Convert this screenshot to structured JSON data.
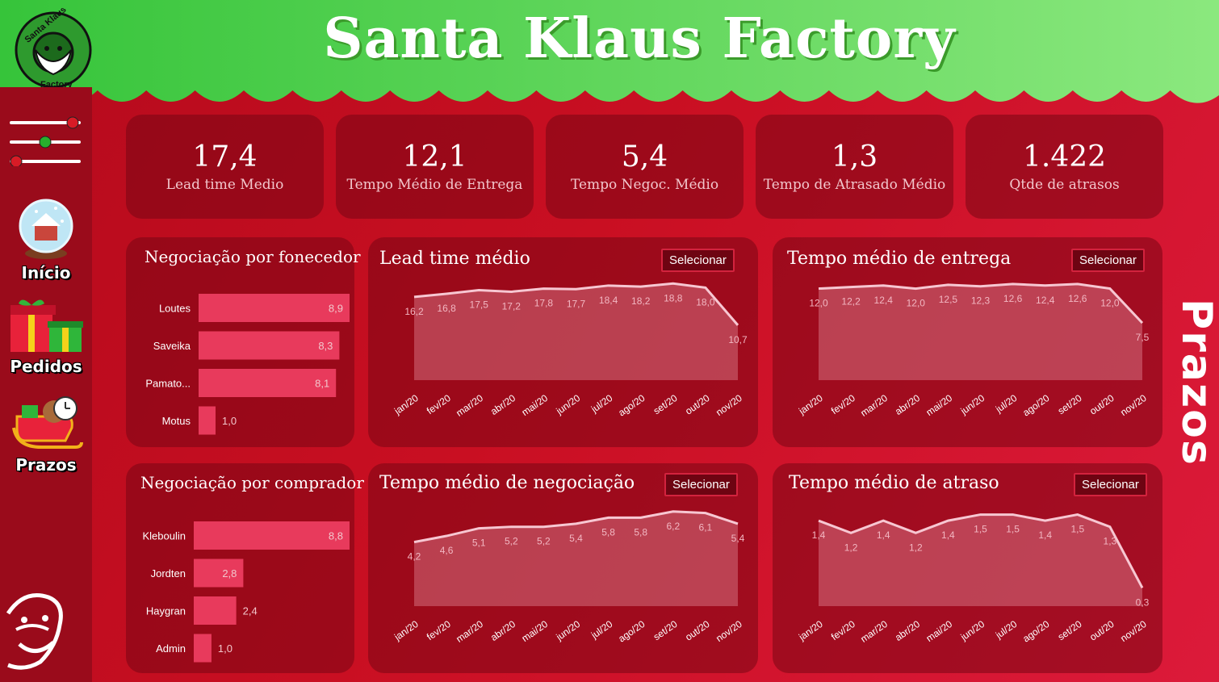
{
  "header": {
    "title": "Santa Klaus Factory",
    "logo_text_top": "Santa Klaus",
    "logo_text_bottom": "Factory"
  },
  "nav": [
    {
      "label": "Início",
      "icon": "snow-globe-icon"
    },
    {
      "label": "Pedidos",
      "icon": "gift-icon"
    },
    {
      "label": "Prazos",
      "icon": "sleigh-icon"
    }
  ],
  "filter_icon": "sliders-icon",
  "page_label": "Prazos",
  "colors": {
    "bar": "#e83a5c",
    "header_green": "#4cd04a",
    "panel": "#7a0515",
    "area_fill": "#f2a5b5"
  },
  "kpis": [
    {
      "value": "17,4",
      "label": "Lead time Medio"
    },
    {
      "value": "12,1",
      "label": "Tempo Médio de Entrega"
    },
    {
      "value": "5,4",
      "label": "Tempo Negoc. Médio"
    },
    {
      "value": "1,3",
      "label": "Tempo de Atrasado Médio"
    },
    {
      "value": "1.422",
      "label": "Qtde de atrasos"
    }
  ],
  "select_label": "Selecionar",
  "chart_data": [
    {
      "type": "bar",
      "orientation": "horizontal",
      "title": "Negociação por fonecedor",
      "categories": [
        "Loutes",
        "Saveika",
        "Pamato...",
        "Motus"
      ],
      "values": [
        8.9,
        8.3,
        8.1,
        1.0
      ],
      "labels": [
        "8,9",
        "8,3",
        "8,1",
        "1,0"
      ],
      "xlim": [
        0,
        8.9
      ]
    },
    {
      "type": "bar",
      "orientation": "horizontal",
      "title": "Negociação por comprador",
      "categories": [
        "Kleboulin",
        "Jordten",
        "Haygran",
        "Admin"
      ],
      "values": [
        8.8,
        2.8,
        2.4,
        1.0
      ],
      "labels": [
        "8,8",
        "2,8",
        "2,4",
        "1,0"
      ],
      "xlim": [
        0,
        8.8
      ]
    },
    {
      "type": "area",
      "title": "Lead time médio",
      "x": [
        "jan/20",
        "fev/20",
        "mar/20",
        "abr/20",
        "mai/20",
        "jun/20",
        "jul/20",
        "ago/20",
        "set/20",
        "out/20",
        "nov/20"
      ],
      "values": [
        16.2,
        16.8,
        17.5,
        17.2,
        17.8,
        17.7,
        18.4,
        18.2,
        18.8,
        18.0,
        10.7
      ],
      "labels": [
        "16,2",
        "16,8",
        "17,5",
        "17,2",
        "17,8",
        "17,7",
        "18,4",
        "18,2",
        "18,8",
        "18,0",
        "10,7"
      ],
      "ylim": [
        0,
        19
      ]
    },
    {
      "type": "area",
      "title": "Tempo médio de entrega",
      "x": [
        "jan/20",
        "fev/20",
        "mar/20",
        "abr/20",
        "mai/20",
        "jun/20",
        "jul/20",
        "ago/20",
        "set/20",
        "out/20",
        "nov/20"
      ],
      "values": [
        12.0,
        12.2,
        12.4,
        12.0,
        12.5,
        12.3,
        12.6,
        12.4,
        12.6,
        12.0,
        7.5
      ],
      "labels": [
        "12,0",
        "12,2",
        "12,4",
        "12,0",
        "12,5",
        "12,3",
        "12,6",
        "12,4",
        "12,6",
        "12,0",
        "7,5"
      ],
      "ylim": [
        0,
        12.8
      ]
    },
    {
      "type": "area",
      "title": "Tempo médio de negociação",
      "x": [
        "jan/20",
        "fev/20",
        "mar/20",
        "abr/20",
        "mai/20",
        "jun/20",
        "jul/20",
        "ago/20",
        "set/20",
        "out/20",
        "nov/20"
      ],
      "values": [
        4.2,
        4.6,
        5.1,
        5.2,
        5.2,
        5.4,
        5.8,
        5.8,
        6.2,
        6.1,
        5.4
      ],
      "labels": [
        "4,2",
        "4,6",
        "5,1",
        "5,2",
        "5,2",
        "5,4",
        "5,8",
        "5,8",
        "6,2",
        "6,1",
        "5,4"
      ],
      "ylim": [
        0,
        6.4
      ]
    },
    {
      "type": "area",
      "title": "Tempo médio de atraso",
      "x": [
        "jan/20",
        "fev/20",
        "mar/20",
        "abr/20",
        "mai/20",
        "jun/20",
        "jul/20",
        "ago/20",
        "set/20",
        "out/20",
        "nov/20"
      ],
      "values": [
        1.4,
        1.2,
        1.4,
        1.2,
        1.4,
        1.5,
        1.5,
        1.4,
        1.5,
        1.3,
        0.3
      ],
      "labels": [
        "1,4",
        "1,2",
        "1,4",
        "1,2",
        "1,4",
        "1,5",
        "1,5",
        "1,4",
        "1,5",
        "1,3",
        "0,3"
      ],
      "ylim": [
        0,
        1.6
      ]
    }
  ]
}
